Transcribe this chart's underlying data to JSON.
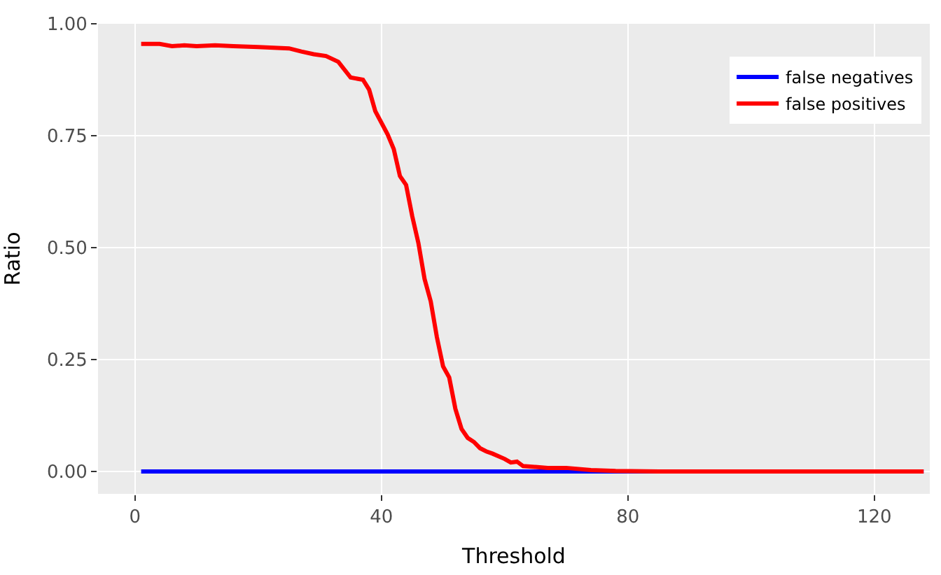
{
  "chart_data": {
    "type": "line",
    "xlabel": "Threshold",
    "ylabel": "Ratio",
    "xlim": [
      -6,
      129
    ],
    "ylim": [
      -0.05,
      1.0
    ],
    "xticks": [
      0,
      40,
      80,
      120
    ],
    "yticks": [
      {
        "value": 0,
        "label": "0.00"
      },
      {
        "value": 0.25,
        "label": "0.25"
      },
      {
        "value": 0.5,
        "label": "0.50"
      },
      {
        "value": 0.75,
        "label": "0.75"
      },
      {
        "value": 1.0,
        "label": "1.00"
      }
    ],
    "grid": true,
    "legend": "top right",
    "line_style": "solid",
    "marker": "none",
    "series": [
      {
        "name": "false negatives",
        "color": "#0000ff",
        "x": [
          1,
          128
        ],
        "values": [
          0,
          0
        ]
      },
      {
        "name": "false positives",
        "color": "#ff0000",
        "x": [
          1,
          4,
          6,
          8,
          10,
          13,
          16,
          20,
          25,
          27,
          29,
          31,
          33,
          35,
          37,
          38,
          39,
          41,
          42,
          43,
          44,
          45,
          46,
          47,
          48,
          49,
          50,
          51,
          52,
          53,
          54,
          55,
          56,
          57,
          58,
          60,
          61,
          62,
          63,
          65,
          67,
          70,
          74,
          78,
          85,
          100,
          128
        ],
        "values": [
          0.955,
          0.955,
          0.95,
          0.952,
          0.95,
          0.952,
          0.95,
          0.948,
          0.945,
          0.938,
          0.932,
          0.928,
          0.915,
          0.88,
          0.875,
          0.853,
          0.805,
          0.753,
          0.72,
          0.66,
          0.64,
          0.57,
          0.51,
          0.43,
          0.38,
          0.3,
          0.235,
          0.21,
          0.14,
          0.095,
          0.075,
          0.066,
          0.052,
          0.045,
          0.04,
          0.028,
          0.02,
          0.022,
          0.012,
          0.01,
          0.008,
          0.008,
          0.003,
          0.001,
          0,
          0,
          0
        ]
      }
    ]
  }
}
